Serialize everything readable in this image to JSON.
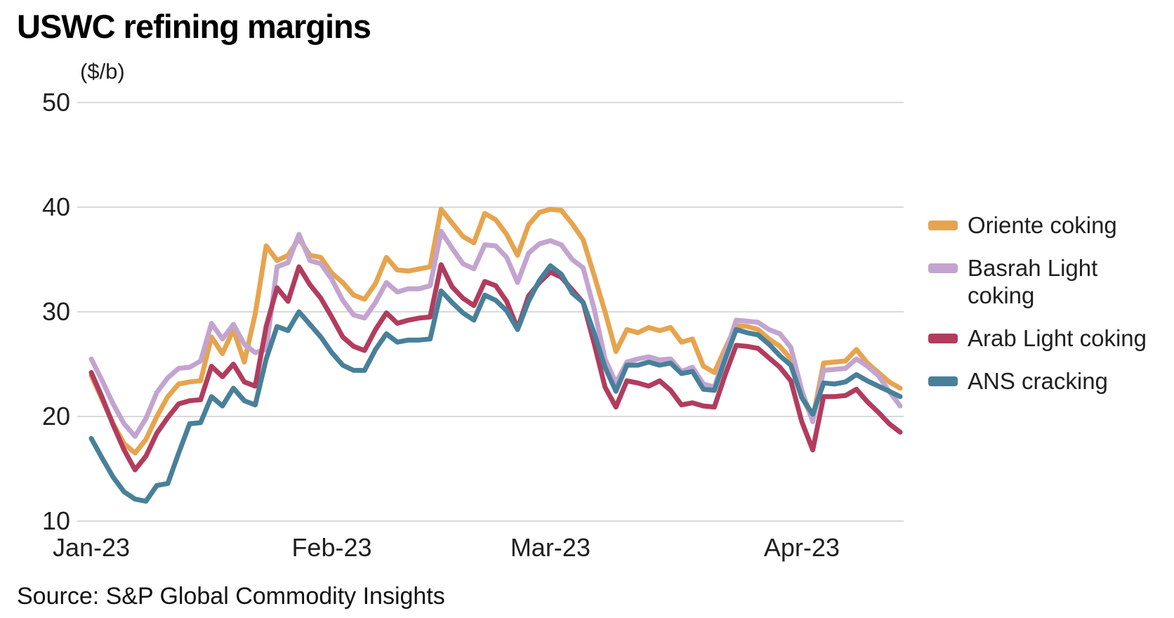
{
  "page": {
    "background": "#ffffff",
    "text_color": "#1f1f1f"
  },
  "header": {
    "title": "USWC refining margins"
  },
  "chart_data": {
    "type": "line",
    "title": "USWC refining margins",
    "unit_label": "($/b)",
    "xlabel": "",
    "ylabel": "",
    "ylim": [
      10,
      50
    ],
    "yticks": [
      50,
      40,
      30,
      20,
      10
    ],
    "grid": "horizontal",
    "grid_color": "#d9d9d9",
    "legend_position": "right",
    "x_point_count": 75,
    "x_tick_positions": [
      0,
      22,
      42,
      65
    ],
    "x_tick_labels": [
      "Jan-23",
      "Feb-23",
      "Mar-23",
      "Apr-23"
    ],
    "series": [
      {
        "name": "Oriente coking",
        "color": "#e6a44e",
        "values": [
          23.9,
          21.6,
          19.3,
          17.4,
          16.5,
          17.8,
          20.0,
          21.9,
          23.1,
          23.3,
          23.4,
          27.6,
          26.0,
          28.3,
          25.2,
          29.8,
          36.3,
          34.9,
          35.4,
          37.0,
          35.4,
          35.2,
          33.7,
          32.8,
          31.6,
          31.2,
          32.7,
          35.2,
          34.0,
          33.9,
          34.1,
          34.3,
          39.8,
          38.5,
          37.2,
          36.6,
          39.4,
          38.8,
          37.4,
          35.4,
          38.3,
          39.5,
          39.8,
          39.7,
          38.4,
          36.9,
          33.5,
          30.0,
          26.2,
          28.3,
          28.0,
          28.5,
          28.2,
          28.5,
          27.1,
          27.4,
          24.8,
          24.2,
          26.5,
          28.7,
          28.6,
          28.3,
          27.4,
          26.7,
          25.5,
          21.9,
          19.8,
          25.1,
          25.2,
          25.3,
          26.4,
          25.1,
          24.2,
          23.3,
          22.7
        ]
      },
      {
        "name": "Basrah Light coking",
        "color": "#c3a4d0",
        "values": [
          25.5,
          23.4,
          21.2,
          19.3,
          18.1,
          19.8,
          22.3,
          23.7,
          24.6,
          24.7,
          25.3,
          28.9,
          27.4,
          28.8,
          26.9,
          26.1,
          26.4,
          34.3,
          34.7,
          37.4,
          34.9,
          34.6,
          33.1,
          31.1,
          29.7,
          29.4,
          30.9,
          32.8,
          31.9,
          32.2,
          32.2,
          32.5,
          37.7,
          36.1,
          34.6,
          34.1,
          36.4,
          36.3,
          35.2,
          32.8,
          35.6,
          36.5,
          36.8,
          36.4,
          35.0,
          34.2,
          30.3,
          25.5,
          23.2,
          25.2,
          25.5,
          25.7,
          25.4,
          25.5,
          24.3,
          24.7,
          23.1,
          22.8,
          26.0,
          29.2,
          29.1,
          29.0,
          28.3,
          27.9,
          26.6,
          22.5,
          19.5,
          24.4,
          24.5,
          24.6,
          25.5,
          24.8,
          23.9,
          22.4,
          21.0
        ]
      },
      {
        "name": "Arab Light coking",
        "color": "#b23c5e",
        "values": [
          24.2,
          21.8,
          19.2,
          16.8,
          14.9,
          16.2,
          18.4,
          19.9,
          21.2,
          21.5,
          21.6,
          24.8,
          23.8,
          25.0,
          23.3,
          22.9,
          28.6,
          32.3,
          31.0,
          34.3,
          32.6,
          31.3,
          29.5,
          27.6,
          26.7,
          26.3,
          28.3,
          29.9,
          28.9,
          29.2,
          29.4,
          29.5,
          34.5,
          32.4,
          31.3,
          30.6,
          32.9,
          32.5,
          31.0,
          28.4,
          31.5,
          32.8,
          33.8,
          33.3,
          32.1,
          30.9,
          27.0,
          22.8,
          20.9,
          23.4,
          23.2,
          22.9,
          23.4,
          22.5,
          21.1,
          21.3,
          21.0,
          20.9,
          24.0,
          26.8,
          26.7,
          26.5,
          25.6,
          24.7,
          23.4,
          19.5,
          16.8,
          21.9,
          21.9,
          22.0,
          22.6,
          21.4,
          20.4,
          19.3,
          18.5
        ]
      },
      {
        "name": "ANS cracking",
        "color": "#48809a",
        "values": [
          17.9,
          16.0,
          14.2,
          12.8,
          12.1,
          11.9,
          13.4,
          13.6,
          16.5,
          19.3,
          19.4,
          21.9,
          21.0,
          22.7,
          21.5,
          21.1,
          25.5,
          28.6,
          28.2,
          30.0,
          28.8,
          27.6,
          26.1,
          24.9,
          24.4,
          24.4,
          26.4,
          27.9,
          27.1,
          27.3,
          27.3,
          27.4,
          32.0,
          30.9,
          29.9,
          29.2,
          31.6,
          31.1,
          30.1,
          28.3,
          31.0,
          33.0,
          34.4,
          33.6,
          31.8,
          30.9,
          28.0,
          24.7,
          22.4,
          24.9,
          24.9,
          25.2,
          24.9,
          25.1,
          24.1,
          24.3,
          22.6,
          22.5,
          25.5,
          28.3,
          28.0,
          27.8,
          26.9,
          25.8,
          24.9,
          21.8,
          20.2,
          23.2,
          23.1,
          23.3,
          24.0,
          23.4,
          22.9,
          22.4,
          21.9
        ]
      }
    ]
  },
  "footer": {
    "source": "Source: S&P Global Commodity Insights"
  }
}
